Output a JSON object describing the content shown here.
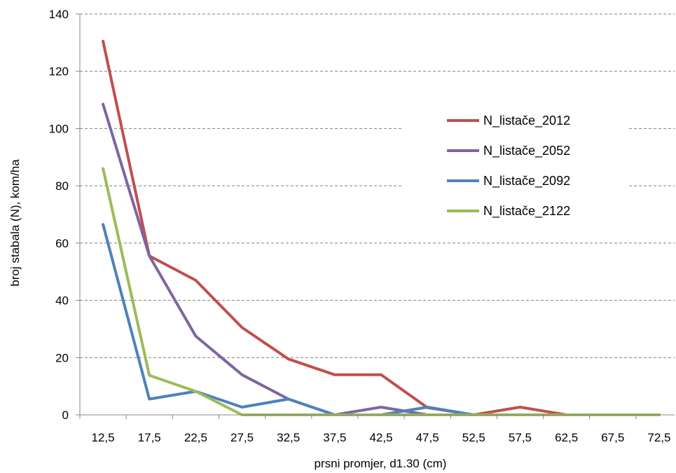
{
  "chart_data": {
    "type": "line",
    "title": "",
    "xlabel": "prsni promjer, d1.30 (cm)",
    "ylabel": "broj stabala (N), kom/ha",
    "categories": [
      "12,5",
      "17,5",
      "22,5",
      "27,5",
      "32,5",
      "37,5",
      "42,5",
      "47,5",
      "52,5",
      "57,5",
      "62,5",
      "67,5",
      "72,5"
    ],
    "ylim": [
      0,
      140
    ],
    "yticks": [
      0,
      20,
      40,
      60,
      80,
      100,
      120,
      140
    ],
    "grid": true,
    "legend_position": "right",
    "series": [
      {
        "name": "N_listače_2012",
        "color": "#c0504d",
        "values": [
          130.5,
          55.5,
          47,
          30.5,
          19.5,
          14,
          14,
          2.5,
          0,
          2.7,
          0,
          0,
          0
        ]
      },
      {
        "name": "N_listače_2052",
        "color": "#8064a2",
        "values": [
          108.5,
          55.5,
          27.5,
          14,
          5.5,
          0,
          2.7,
          0,
          0,
          0,
          0,
          0,
          0
        ]
      },
      {
        "name": "N_listače_2092",
        "color": "#4f81bd",
        "values": [
          66.5,
          5.5,
          8.2,
          2.7,
          5.5,
          0,
          0,
          2.7,
          0,
          0,
          0,
          0,
          0
        ]
      },
      {
        "name": "N_listače_2122",
        "color": "#9bbb59",
        "values": [
          86,
          13.8,
          8.2,
          0,
          0,
          0,
          0,
          0,
          0,
          0,
          0,
          0,
          0
        ]
      }
    ]
  }
}
